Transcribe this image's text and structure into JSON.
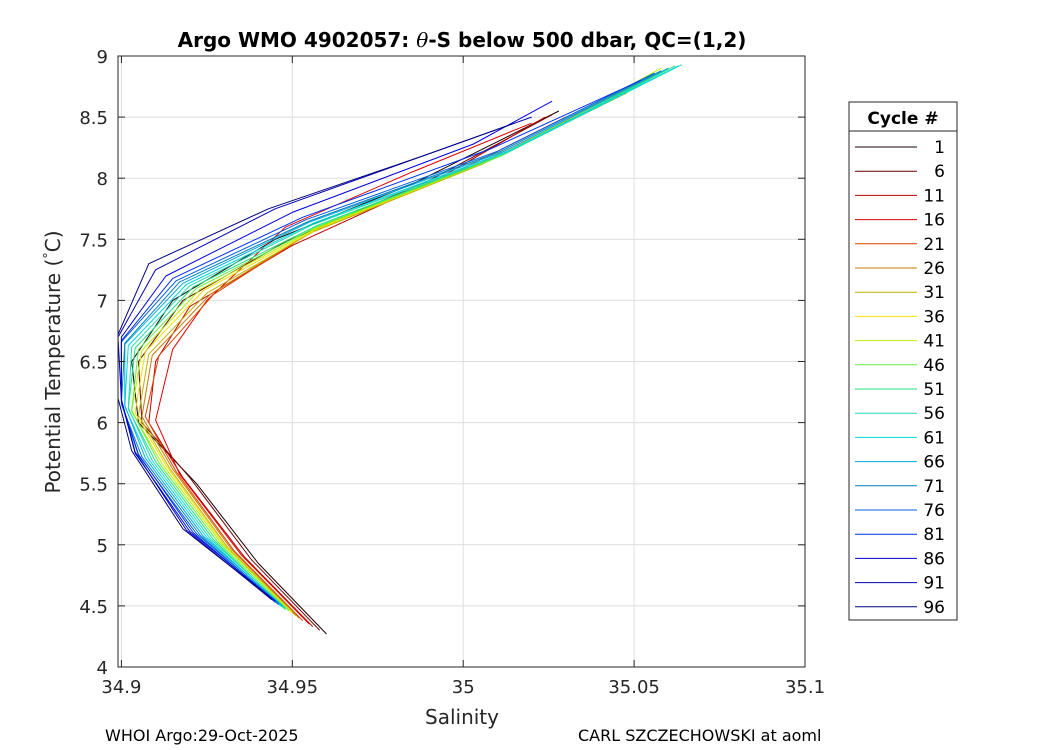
{
  "chart_data": {
    "type": "line",
    "title_prefix": "Argo WMO 4902057: ",
    "title_symbol": "θ",
    "title_suffix": "-S below 500 dbar,  QC=(1,2)",
    "xlabel": "Salinity",
    "ylabel_main": "Potential Temperature (",
    "ylabel_degree": "°",
    "ylabel_unit": "C)",
    "xlim": [
      34.899,
      35.1
    ],
    "ylim": [
      4,
      9
    ],
    "xticks": [
      34.9,
      34.95,
      35,
      35.05,
      35.1
    ],
    "xtick_labels": [
      "34.9",
      "34.95",
      "35",
      "35.05",
      "35.1"
    ],
    "yticks": [
      4,
      4.5,
      5,
      5.5,
      6,
      6.5,
      7,
      7.5,
      8,
      8.5,
      9
    ],
    "ytick_labels": [
      "4",
      "4.5",
      "5",
      "5.5",
      "6",
      "6.5",
      "7",
      "7.5",
      "8",
      "8.5",
      "9"
    ],
    "grid": true,
    "legend_title": "Cycle #",
    "legend_position": "right-outside",
    "series": [
      {
        "name": "1",
        "color": "#1a0000",
        "points": [
          [
            34.96,
            4.27
          ],
          [
            34.94,
            4.85
          ],
          [
            34.922,
            5.5
          ],
          [
            34.905,
            6.0
          ],
          [
            34.903,
            6.5
          ],
          [
            34.915,
            7.0
          ],
          [
            34.945,
            7.5
          ],
          [
            34.985,
            7.95
          ],
          [
            35.028,
            8.55
          ]
        ]
      },
      {
        "name": "6",
        "color": "#6a0000",
        "points": [
          [
            34.958,
            4.3
          ],
          [
            34.938,
            4.88
          ],
          [
            34.92,
            5.55
          ],
          [
            34.906,
            6.0
          ],
          [
            34.905,
            6.5
          ],
          [
            34.918,
            7.0
          ],
          [
            34.948,
            7.48
          ],
          [
            34.99,
            7.98
          ],
          [
            35.026,
            8.52
          ]
        ]
      },
      {
        "name": "11",
        "color": "#bb0000",
        "points": [
          [
            34.956,
            4.33
          ],
          [
            34.936,
            4.9
          ],
          [
            34.918,
            5.55
          ],
          [
            34.908,
            6.0
          ],
          [
            34.91,
            6.5
          ],
          [
            34.92,
            6.95
          ],
          [
            34.95,
            7.45
          ],
          [
            34.993,
            8.0
          ],
          [
            35.024,
            8.5
          ]
        ]
      },
      {
        "name": "16",
        "color": "#e00000",
        "points": [
          [
            34.955,
            4.35
          ],
          [
            34.935,
            4.92
          ],
          [
            34.917,
            5.58
          ],
          [
            34.91,
            6.02
          ],
          [
            34.915,
            6.6
          ],
          [
            34.925,
            7.0
          ],
          [
            34.948,
            7.6
          ],
          [
            34.985,
            8.05
          ],
          [
            35.02,
            8.45
          ]
        ]
      },
      {
        "name": "21",
        "color": "#e34000",
        "points": [
          [
            34.953,
            4.38
          ],
          [
            34.933,
            4.95
          ],
          [
            34.916,
            5.6
          ],
          [
            34.907,
            6.05
          ],
          [
            34.911,
            6.55
          ],
          [
            34.927,
            7.05
          ],
          [
            34.955,
            7.55
          ],
          [
            35.0,
            8.08
          ],
          [
            35.03,
            8.5
          ]
        ]
      },
      {
        "name": "26",
        "color": "#c87800",
        "points": [
          [
            34.952,
            4.4
          ],
          [
            34.932,
            4.97
          ],
          [
            34.915,
            5.62
          ],
          [
            34.906,
            6.05
          ],
          [
            34.909,
            6.55
          ],
          [
            34.926,
            7.05
          ],
          [
            34.955,
            7.55
          ],
          [
            35.003,
            8.1
          ],
          [
            35.04,
            8.6
          ]
        ]
      },
      {
        "name": "31",
        "color": "#c0b000",
        "points": [
          [
            34.951,
            4.42
          ],
          [
            34.931,
            4.98
          ],
          [
            34.914,
            5.63
          ],
          [
            34.905,
            6.06
          ],
          [
            34.908,
            6.56
          ],
          [
            34.925,
            7.06
          ],
          [
            34.956,
            7.56
          ],
          [
            35.006,
            8.12
          ],
          [
            35.048,
            8.7
          ]
        ]
      },
      {
        "name": "36",
        "color": "#f0e000",
        "points": [
          [
            34.95,
            4.44
          ],
          [
            34.93,
            5.0
          ],
          [
            34.913,
            5.65
          ],
          [
            34.904,
            6.08
          ],
          [
            34.907,
            6.58
          ],
          [
            34.924,
            7.08
          ],
          [
            34.957,
            7.58
          ],
          [
            35.008,
            8.15
          ],
          [
            35.056,
            8.85
          ]
        ]
      },
      {
        "name": "41",
        "color": "#b8f000",
        "points": [
          [
            34.95,
            4.45
          ],
          [
            34.929,
            5.02
          ],
          [
            34.912,
            5.66
          ],
          [
            34.903,
            6.09
          ],
          [
            34.906,
            6.59
          ],
          [
            34.923,
            7.09
          ],
          [
            34.957,
            7.59
          ],
          [
            35.01,
            8.17
          ],
          [
            35.058,
            8.9
          ]
        ]
      },
      {
        "name": "46",
        "color": "#60f040",
        "points": [
          [
            34.949,
            4.46
          ],
          [
            34.928,
            5.03
          ],
          [
            34.911,
            5.67
          ],
          [
            34.903,
            6.1
          ],
          [
            34.905,
            6.6
          ],
          [
            34.922,
            7.1
          ],
          [
            34.957,
            7.6
          ],
          [
            35.011,
            8.18
          ],
          [
            35.06,
            8.9
          ]
        ]
      },
      {
        "name": "51",
        "color": "#20e080",
        "points": [
          [
            34.948,
            4.47
          ],
          [
            34.927,
            5.04
          ],
          [
            34.91,
            5.68
          ],
          [
            34.902,
            6.11
          ],
          [
            34.904,
            6.61
          ],
          [
            34.921,
            7.11
          ],
          [
            34.957,
            7.61
          ],
          [
            35.012,
            8.2
          ],
          [
            35.062,
            8.92
          ]
        ]
      },
      {
        "name": "56",
        "color": "#20d8b0",
        "points": [
          [
            34.948,
            4.48
          ],
          [
            34.926,
            5.05
          ],
          [
            34.909,
            5.69
          ],
          [
            34.902,
            6.12
          ],
          [
            34.903,
            6.62
          ],
          [
            34.92,
            7.12
          ],
          [
            34.956,
            7.62
          ],
          [
            35.013,
            8.21
          ],
          [
            35.064,
            8.93
          ]
        ]
      },
      {
        "name": "61",
        "color": "#00d8e0",
        "points": [
          [
            34.947,
            4.49
          ],
          [
            34.925,
            5.06
          ],
          [
            34.908,
            5.7
          ],
          [
            34.901,
            6.13
          ],
          [
            34.902,
            6.63
          ],
          [
            34.919,
            7.13
          ],
          [
            34.956,
            7.63
          ],
          [
            35.013,
            8.22
          ],
          [
            35.063,
            8.92
          ]
        ]
      },
      {
        "name": "66",
        "color": "#00a8d8",
        "points": [
          [
            34.947,
            4.5
          ],
          [
            34.924,
            5.07
          ],
          [
            34.907,
            5.71
          ],
          [
            34.901,
            6.14
          ],
          [
            34.901,
            6.64
          ],
          [
            34.918,
            7.14
          ],
          [
            34.955,
            7.64
          ],
          [
            35.012,
            8.22
          ],
          [
            35.06,
            8.9
          ]
        ]
      },
      {
        "name": "71",
        "color": "#0080c0",
        "points": [
          [
            34.946,
            4.51
          ],
          [
            34.923,
            5.08
          ],
          [
            34.906,
            5.72
          ],
          [
            34.9,
            6.15
          ],
          [
            34.901,
            6.65
          ],
          [
            34.917,
            7.15
          ],
          [
            34.955,
            7.65
          ],
          [
            35.011,
            8.22
          ],
          [
            35.058,
            8.88
          ]
        ]
      },
      {
        "name": "76",
        "color": "#0060e0",
        "points": [
          [
            34.946,
            4.52
          ],
          [
            34.922,
            5.09
          ],
          [
            34.905,
            5.73
          ],
          [
            34.9,
            6.16
          ],
          [
            34.9,
            6.66
          ],
          [
            34.916,
            7.16
          ],
          [
            34.954,
            7.66
          ],
          [
            35.01,
            8.22
          ],
          [
            35.056,
            8.86
          ]
        ]
      },
      {
        "name": "81",
        "color": "#0030f0",
        "points": [
          [
            34.945,
            4.53
          ],
          [
            34.921,
            5.1
          ],
          [
            34.905,
            5.74
          ],
          [
            34.9,
            6.17
          ],
          [
            34.9,
            6.67
          ],
          [
            34.915,
            7.18
          ],
          [
            34.953,
            7.68
          ],
          [
            35.008,
            8.24
          ],
          [
            35.052,
            8.8
          ]
        ]
      },
      {
        "name": "86",
        "color": "#0000e0",
        "points": [
          [
            34.945,
            4.54
          ],
          [
            34.92,
            5.11
          ],
          [
            34.904,
            5.75
          ],
          [
            34.9,
            6.18
          ],
          [
            34.9,
            6.7
          ],
          [
            34.913,
            7.2
          ],
          [
            34.95,
            7.72
          ],
          [
            35.003,
            8.28
          ],
          [
            35.026,
            8.63
          ]
        ]
      },
      {
        "name": "91",
        "color": "#0000b0",
        "points": [
          [
            34.944,
            4.55
          ],
          [
            34.919,
            5.12
          ],
          [
            34.904,
            5.76
          ],
          [
            34.9,
            6.19
          ],
          [
            34.899,
            6.7
          ],
          [
            34.91,
            7.25
          ],
          [
            34.945,
            7.75
          ],
          [
            34.995,
            8.25
          ],
          [
            35.02,
            8.5
          ]
        ]
      },
      {
        "name": "96",
        "color": "#000080",
        "points": [
          [
            34.944,
            4.56
          ],
          [
            34.918,
            5.13
          ],
          [
            34.903,
            5.77
          ],
          [
            34.899,
            6.2
          ],
          [
            34.899,
            6.72
          ],
          [
            34.908,
            7.3
          ],
          [
            34.943,
            7.75
          ],
          [
            34.99,
            8.2
          ],
          [
            35.015,
            8.45
          ]
        ]
      }
    ]
  },
  "footer": {
    "left": "WHOI Argo:29-Oct-2025",
    "right": "CARL SZCZECHOWSKI at aoml"
  }
}
